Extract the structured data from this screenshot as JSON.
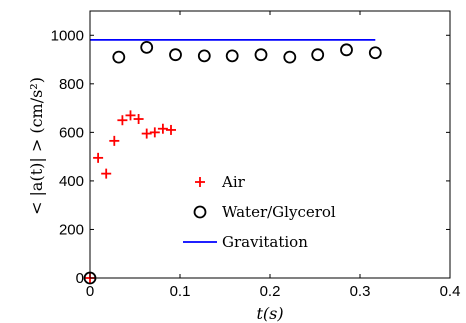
{
  "chart_data": {
    "type": "scatter",
    "xlabel": "t(s)",
    "ylabel": "< |a(t)| > (cm/s²)",
    "xlim": [
      0,
      0.4
    ],
    "ylim": [
      0,
      1100
    ],
    "xticks": [
      0,
      0.1,
      0.2,
      0.3,
      0.4
    ],
    "xtick_labels": [
      "0",
      "0.1",
      "0.2",
      "0.3",
      "0.4"
    ],
    "yticks": [
      0,
      200,
      400,
      600,
      800,
      1000
    ],
    "ytick_labels": [
      "0",
      "200",
      "400",
      "600",
      "800",
      "1000"
    ],
    "grid": false,
    "legend_position": "center",
    "series": [
      {
        "name": "Air",
        "marker": "plus",
        "color": "#ff0000",
        "x": [
          0.0,
          0.009,
          0.018,
          0.027,
          0.036,
          0.045,
          0.054,
          0.063,
          0.072,
          0.081,
          0.09
        ],
        "y": [
          0,
          495,
          430,
          565,
          650,
          670,
          655,
          595,
          600,
          615,
          610
        ]
      },
      {
        "name": "Water/Glycerol",
        "marker": "circle",
        "color": "#000000",
        "x": [
          0.0,
          0.032,
          0.063,
          0.095,
          0.127,
          0.158,
          0.19,
          0.222,
          0.253,
          0.285,
          0.317
        ],
        "y": [
          0,
          910,
          950,
          920,
          915,
          915,
          920,
          910,
          920,
          940,
          928
        ]
      },
      {
        "name": "Gravitation",
        "marker": "line",
        "color": "#0000ff",
        "x": [
          0.0,
          0.317
        ],
        "y": [
          981,
          981
        ]
      }
    ]
  }
}
